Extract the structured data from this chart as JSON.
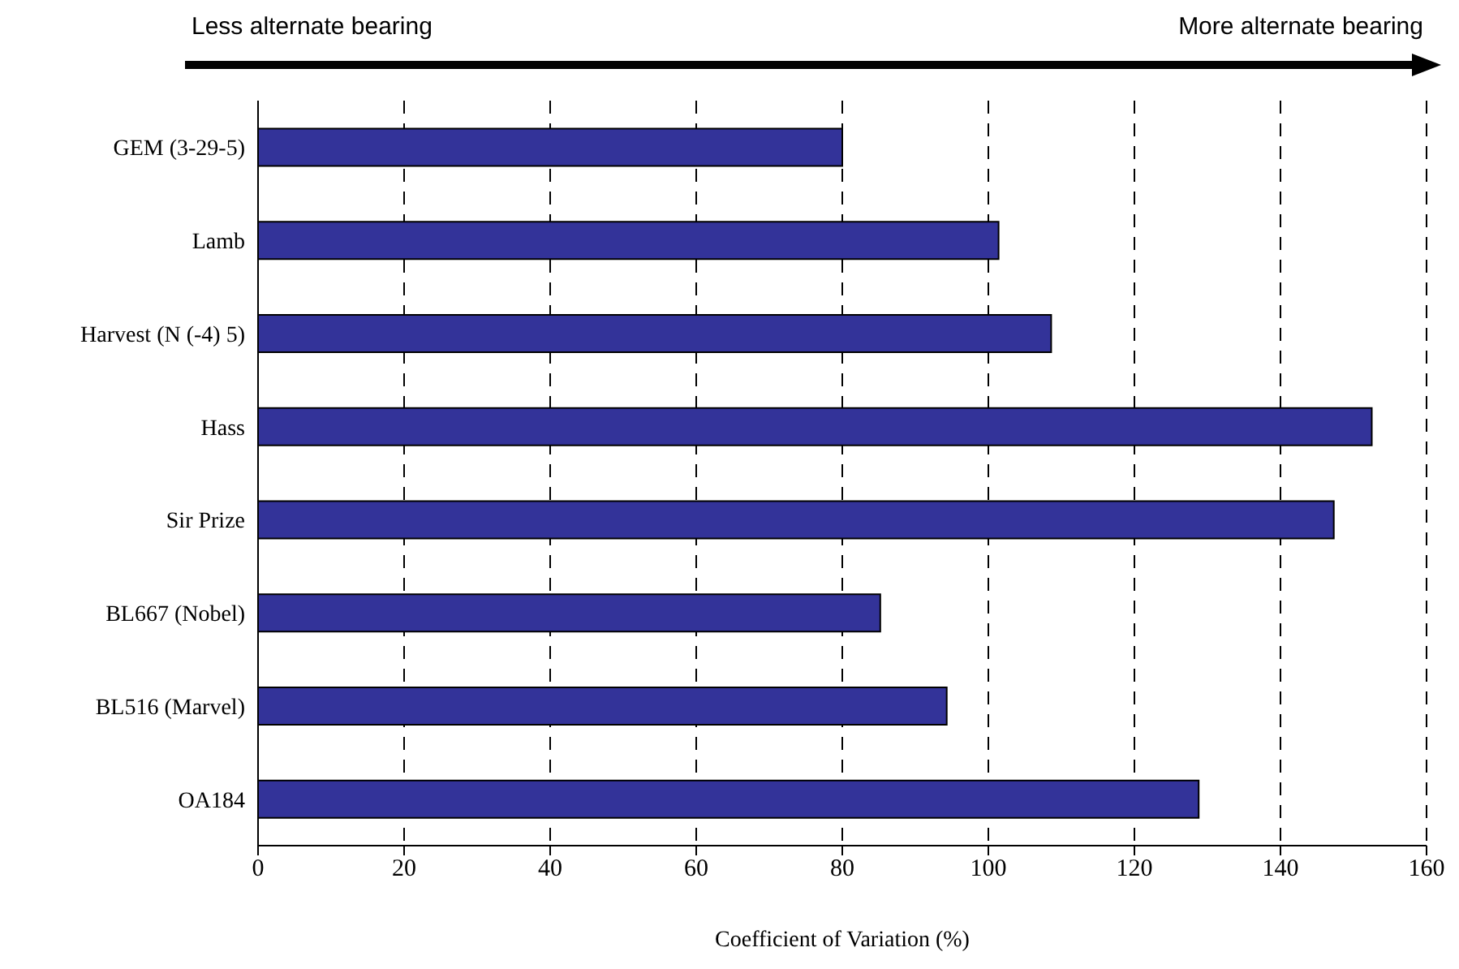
{
  "chart_data": {
    "type": "bar",
    "orientation": "horizontal",
    "xlabel": "Coefficient of Variation (%)",
    "annotations": [
      "Less alternate bearing",
      "More alternate bearing"
    ],
    "categories": [
      "GEM (3-29-5)",
      "Lamb",
      "Harvest (N (-4) 5)",
      "Hass",
      "Sir Prize",
      "BL667 (Nobel)",
      "BL516 (Marvel)",
      "OA184"
    ],
    "values": [
      80,
      101.4,
      108.6,
      152.5,
      147.3,
      85.2,
      94.3,
      128.8
    ],
    "color": "#333399",
    "xlim": [
      0,
      160
    ],
    "xticks": [
      0,
      20,
      40,
      60,
      80,
      100,
      120,
      140,
      160
    ],
    "grid": "x"
  }
}
